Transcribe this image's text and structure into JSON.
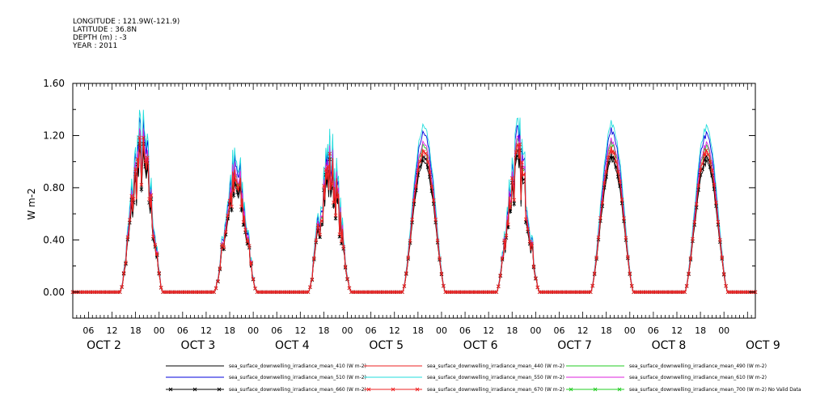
{
  "header": {
    "lines": [
      "LONGITUDE : 121.9W(-121.9)",
      "LATITUDE : 36.8N",
      "DEPTH (m) : -3",
      "YEAR : 2011"
    ]
  },
  "chart_data": {
    "type": "line",
    "title": "",
    "ylabel": "W m-2",
    "ylim": [
      -0.2,
      1.6
    ],
    "yticks": [
      "0.00",
      "0.40",
      "0.80",
      "1.20",
      "1.60"
    ],
    "x_hour_ticks": [
      "06",
      "12",
      "18",
      "00",
      "06",
      "12",
      "18",
      "00",
      "06",
      "12",
      "18",
      "00",
      "06",
      "12",
      "18",
      "00",
      "06",
      "12",
      "18",
      "00",
      "06",
      "12",
      "18",
      "00",
      "06",
      "12",
      "18",
      "00"
    ],
    "x_date_labels": [
      "OCT 2",
      "OCT 3",
      "OCT 4",
      "OCT 5",
      "OCT 6",
      "OCT 7",
      "OCT 8",
      "OCT 9"
    ],
    "x_range_hours": [
      2,
      176
    ],
    "sunrise_hour": 14,
    "sunset_hour": 25,
    "daily_peaks": [
      {
        "day": "OCT 2",
        "peak": 1.06,
        "noise": "cloudy"
      },
      {
        "day": "OCT 3",
        "peak": 0.85,
        "noise": "cloudy"
      },
      {
        "day": "OCT 4",
        "peak": 0.95,
        "noise": "cloudy"
      },
      {
        "day": "OCT 5",
        "peak": 1.08,
        "noise": "clear"
      },
      {
        "day": "OCT 6",
        "peak": 1.0,
        "noise": "cloudy"
      },
      {
        "day": "OCT 7",
        "peak": 1.1,
        "noise": "clear"
      },
      {
        "day": "OCT 8",
        "peak": 1.07,
        "noise": "clear"
      }
    ],
    "series": [
      {
        "name": "sea_surface_downwelling_irradiance_mean_410 (W m-2)",
        "color": "#000000",
        "factor": 0.93,
        "marker": false
      },
      {
        "name": "sea_surface_downwelling_irradiance_mean_440 (W m-2)",
        "color": "#ee2222",
        "factor": 1.0,
        "marker": false
      },
      {
        "name": "sea_surface_downwelling_irradiance_mean_490 (W m-2)",
        "color": "#22cc22",
        "factor": 1.04,
        "marker": false
      },
      {
        "name": "sea_surface_downwelling_irradiance_mean_510 (W m-2)",
        "color": "#0000dd",
        "factor": 1.13,
        "marker": false
      },
      {
        "name": "sea_surface_downwelling_irradiance_mean_550 (W m-2)",
        "color": "#22dddd",
        "factor": 1.18,
        "marker": false
      },
      {
        "name": "sea_surface_downwelling_irradiance_mean_610 (W m-2)",
        "color": "#dd22dd",
        "factor": 1.06,
        "marker": false
      },
      {
        "name": "sea_surface_downwelling_irradiance_mean_660 (W m-2)",
        "color": "#000000",
        "factor": 0.96,
        "marker": true
      },
      {
        "name": "sea_surface_downwelling_irradiance_mean_670 (W m-2)",
        "color": "#ee2222",
        "factor": 1.0,
        "marker": true
      },
      {
        "name": "sea_surface_downwelling_irradiance_mean_700 (W m-2) No Valid Data",
        "color": "#22cc22",
        "factor": 0,
        "marker": true,
        "nodata": true
      }
    ]
  }
}
